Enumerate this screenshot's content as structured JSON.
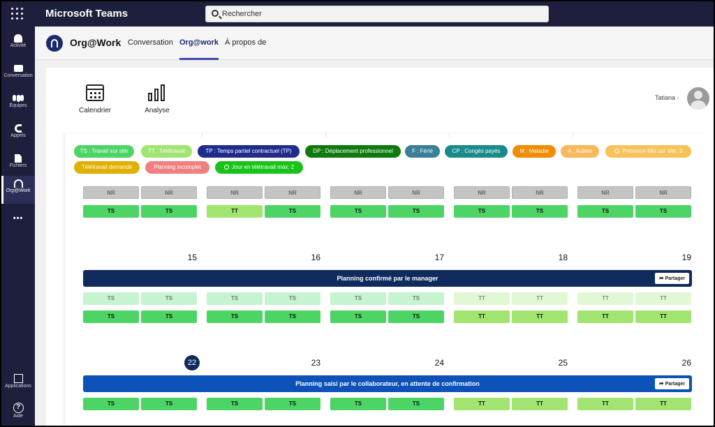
{
  "app": {
    "title": "Microsoft Teams"
  },
  "search": {
    "placeholder": "Rechercher"
  },
  "rail": {
    "items": [
      {
        "label": "Activité",
        "icon": "bell-icon"
      },
      {
        "label": "Conversation",
        "icon": "chat-icon"
      },
      {
        "label": "Équipes",
        "icon": "teams-icon"
      },
      {
        "label": "Appels",
        "icon": "phone-icon"
      },
      {
        "label": "Fichiers",
        "icon": "file-icon"
      },
      {
        "label": "Org@Work",
        "icon": "orgwork-icon"
      }
    ],
    "more": "•••",
    "apps_label": "Applications",
    "help_label": "Aide",
    "help_glyph": "?"
  },
  "header": {
    "app_name": "Org@Work",
    "tabs": [
      {
        "label": "Conversation"
      },
      {
        "label": "Org@work",
        "active": true
      },
      {
        "label": "À propos de"
      }
    ]
  },
  "toolbar": {
    "calendar_label": "Calendrier",
    "analysis_label": "Analyse",
    "user_name": "Tatiana -"
  },
  "legend": [
    {
      "label": "TS : Travail sur site",
      "color": "#4cd464"
    },
    {
      "label": "TT : Télétravail",
      "color": "#a2e470"
    },
    {
      "label": "TP : Temps partiel contractuel (TP)",
      "color": "#1f2c8c"
    },
    {
      "label": "DP : Déplacement professionnel",
      "color": "#0e7a0e"
    },
    {
      "label": "F : Férié",
      "color": "#3a7f96"
    },
    {
      "label": "CP : Congés payés",
      "color": "#1a8a8a"
    },
    {
      "label": "M : Maladie",
      "color": "#f08c00"
    },
    {
      "label": "A : Autres",
      "color": "#f7b95c"
    },
    {
      "label": "Présence Min sur site: 3",
      "color": "#f7c25a"
    },
    {
      "label": "Télétravail demandé",
      "color": "#e0b000"
    },
    {
      "label": "Planning incomplet",
      "color": "#f08080"
    },
    {
      "label": "Jour en télétravail max: 2",
      "color": "#18c418"
    }
  ],
  "week1": {
    "row1": [
      "NR",
      "NR",
      "NR",
      "NR",
      "NR",
      "NR",
      "NR",
      "NR",
      "NR",
      "NR"
    ],
    "row2": [
      "TS",
      "TS",
      "TT",
      "TS",
      "TS",
      "TS",
      "TS",
      "TS",
      "TS",
      "TS"
    ]
  },
  "week2": {
    "days": [
      "15",
      "16",
      "17",
      "18",
      "19"
    ],
    "banner": "Planning confirmé par le manager",
    "banner_color": "#0f2a5c",
    "share_label": "Partager",
    "row1": [
      "TS",
      "TS",
      "TS",
      "TS",
      "TS",
      "TS",
      "TT",
      "TT",
      "TT",
      "TT"
    ],
    "row2": [
      "TS",
      "TS",
      "TS",
      "TS",
      "TS",
      "TS",
      "TT",
      "TT",
      "TT",
      "TT"
    ]
  },
  "week3": {
    "days": [
      "22",
      "23",
      "24",
      "25",
      "26"
    ],
    "banner": "Planning saisi par le collaborateur, en attente de confirmation",
    "banner_color": "#0c52b8",
    "share_label": "Partager",
    "row1": [
      "TS",
      "TS",
      "TS",
      "TS",
      "TS",
      "TS",
      "TT",
      "TT",
      "TT",
      "TT"
    ]
  }
}
